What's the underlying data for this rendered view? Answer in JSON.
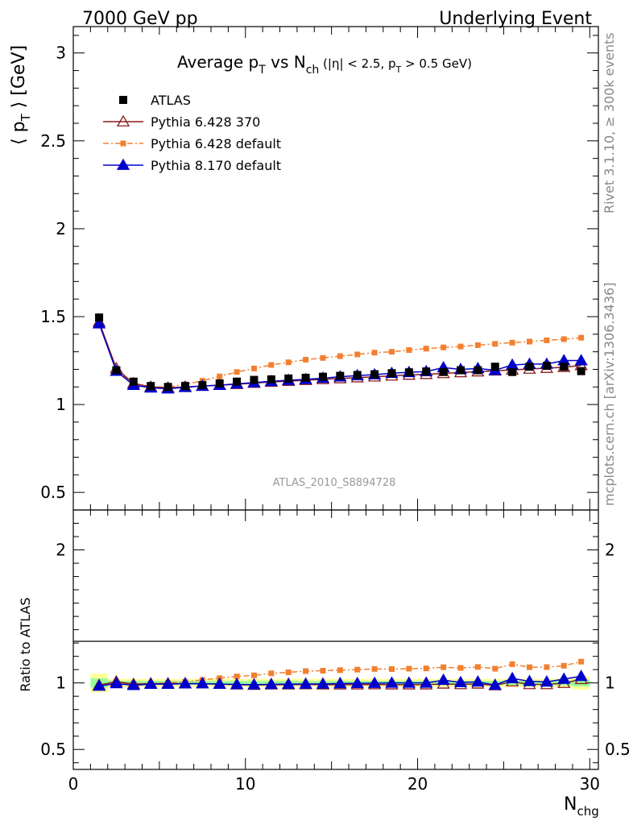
{
  "header": {
    "energy_label": "7000 GeV pp",
    "process_label": "Underlying Event"
  },
  "side_labels": {
    "rivet": "Rivet 3.1.10, ≥ 300k events",
    "mcplots": "mcplots.cern.ch [arXiv:1306.3436]"
  },
  "chart_data": [
    {
      "panel": "main",
      "type": "line",
      "title": "Average p_T vs N_ch (|η| < 2.5, p_T > 0.5 GeV)",
      "ylabel": "⟨ p_T ⟩ [GeV]",
      "xlabel": "",
      "analysis_label": "ATLAS_2010_S8894728",
      "xlim": [
        0,
        30.5
      ],
      "ylim": [
        0.4,
        3.15
      ],
      "y_ticks": [
        0.5,
        1,
        1.5,
        2,
        2.5,
        3
      ],
      "legend_position": "top-left",
      "grid": false,
      "x": [
        1.5,
        2.5,
        3.5,
        4.5,
        5.5,
        6.5,
        7.5,
        8.5,
        9.5,
        10.5,
        11.5,
        12.5,
        13.5,
        14.5,
        15.5,
        16.5,
        17.5,
        18.5,
        19.5,
        20.5,
        21.5,
        22.5,
        23.5,
        24.5,
        25.5,
        26.5,
        27.5,
        28.5,
        29.5
      ],
      "series": [
        {
          "name": "ATLAS",
          "color": "#000000",
          "marker": "square",
          "line": "none",
          "values": [
            1.495,
            1.195,
            1.13,
            1.105,
            1.1,
            1.105,
            1.11,
            1.12,
            1.13,
            1.14,
            1.143,
            1.148,
            1.152,
            1.158,
            1.163,
            1.168,
            1.172,
            1.178,
            1.183,
            1.188,
            1.185,
            1.195,
            1.195,
            1.215,
            1.185,
            1.215,
            1.22,
            1.215,
            1.19
          ]
        },
        {
          "name": "Pythia 6.428 370",
          "color": "#8b1a1a",
          "marker": "open-triangle",
          "line": "solid",
          "values": [
            1.47,
            1.205,
            1.12,
            1.1,
            1.095,
            1.1,
            1.105,
            1.11,
            1.115,
            1.122,
            1.128,
            1.133,
            1.138,
            1.143,
            1.148,
            1.153,
            1.158,
            1.163,
            1.168,
            1.172,
            1.177,
            1.182,
            1.187,
            1.192,
            1.197,
            1.202,
            1.207,
            1.212,
            1.222
          ]
        },
        {
          "name": "Pythia 6.428 default",
          "color": "#f28030",
          "marker": "filled-square-small",
          "line": "dash-dot",
          "values": [
            1.47,
            1.195,
            1.12,
            1.1,
            1.1,
            1.115,
            1.135,
            1.16,
            1.185,
            1.205,
            1.225,
            1.24,
            1.255,
            1.265,
            1.275,
            1.285,
            1.295,
            1.3,
            1.31,
            1.318,
            1.325,
            1.33,
            1.338,
            1.345,
            1.352,
            1.358,
            1.365,
            1.372,
            1.38
          ]
        },
        {
          "name": "Pythia 8.170 default",
          "color": "#0000cc",
          "marker": "filled-triangle",
          "line": "solid",
          "values": [
            1.46,
            1.19,
            1.11,
            1.095,
            1.09,
            1.098,
            1.105,
            1.11,
            1.118,
            1.125,
            1.132,
            1.138,
            1.143,
            1.15,
            1.158,
            1.165,
            1.17,
            1.178,
            1.183,
            1.188,
            1.21,
            1.2,
            1.205,
            1.195,
            1.225,
            1.23,
            1.23,
            1.25,
            1.25
          ]
        }
      ]
    },
    {
      "panel": "ratio",
      "type": "line",
      "title": "",
      "ylabel": "Ratio to ATLAS",
      "xlabel": "N_chg",
      "xlim": [
        0,
        30.5
      ],
      "ylim": [
        0.35,
        2.3
      ],
      "x_ticks": [
        0,
        10,
        20,
        30
      ],
      "y_ticks": [
        0.5,
        1,
        2
      ],
      "reference_line": 1,
      "x": [
        1.5,
        2.5,
        3.5,
        4.5,
        5.5,
        6.5,
        7.5,
        8.5,
        9.5,
        10.5,
        11.5,
        12.5,
        13.5,
        14.5,
        15.5,
        16.5,
        17.5,
        18.5,
        19.5,
        20.5,
        21.5,
        22.5,
        23.5,
        24.5,
        25.5,
        26.5,
        27.5,
        28.5,
        29.5
      ],
      "bands": {
        "yellow_halfwidth": [
          0.07,
          0.03,
          0.03,
          0.03,
          0.03,
          0.03,
          0.03,
          0.03,
          0.03,
          0.03,
          0.03,
          0.03,
          0.03,
          0.03,
          0.03,
          0.03,
          0.03,
          0.03,
          0.03,
          0.03,
          0.03,
          0.03,
          0.03,
          0.03,
          0.03,
          0.03,
          0.03,
          0.035,
          0.05
        ],
        "green_halfwidth": [
          0.035,
          0.015,
          0.015,
          0.015,
          0.015,
          0.015,
          0.015,
          0.015,
          0.015,
          0.015,
          0.015,
          0.015,
          0.015,
          0.015,
          0.015,
          0.015,
          0.015,
          0.015,
          0.015,
          0.015,
          0.015,
          0.015,
          0.015,
          0.015,
          0.015,
          0.015,
          0.015,
          0.02,
          0.025
        ]
      },
      "series": [
        {
          "name": "Pythia 6.428 370",
          "color": "#8b1a1a",
          "marker": "open-triangle",
          "values": [
            0.983,
            1.01,
            0.991,
            0.995,
            0.995,
            0.995,
            0.995,
            0.991,
            0.987,
            0.984,
            0.987,
            0.987,
            0.988,
            0.987,
            0.987,
            0.987,
            0.988,
            0.987,
            0.987,
            0.987,
            0.993,
            0.989,
            0.993,
            0.981,
            1.01,
            0.989,
            0.989,
            0.998,
            1.027
          ]
        },
        {
          "name": "Pythia 6.428 default",
          "color": "#f28030",
          "marker": "filled-square-small",
          "values": [
            0.983,
            1.0,
            0.991,
            0.995,
            1.0,
            1.009,
            1.023,
            1.036,
            1.049,
            1.057,
            1.072,
            1.08,
            1.089,
            1.092,
            1.096,
            1.1,
            1.105,
            1.104,
            1.107,
            1.109,
            1.118,
            1.113,
            1.12,
            1.107,
            1.141,
            1.118,
            1.119,
            1.129,
            1.16
          ]
        },
        {
          "name": "Pythia 8.170 default",
          "color": "#0000cc",
          "marker": "filled-triangle",
          "values": [
            0.977,
            0.996,
            0.982,
            0.991,
            0.991,
            0.994,
            0.995,
            0.991,
            0.989,
            0.987,
            0.99,
            0.991,
            0.992,
            0.993,
            0.996,
            0.997,
            0.998,
            1.0,
            1.0,
            1.0,
            1.021,
            1.004,
            1.008,
            0.984,
            1.034,
            1.012,
            1.008,
            1.029,
            1.05
          ]
        }
      ]
    }
  ]
}
